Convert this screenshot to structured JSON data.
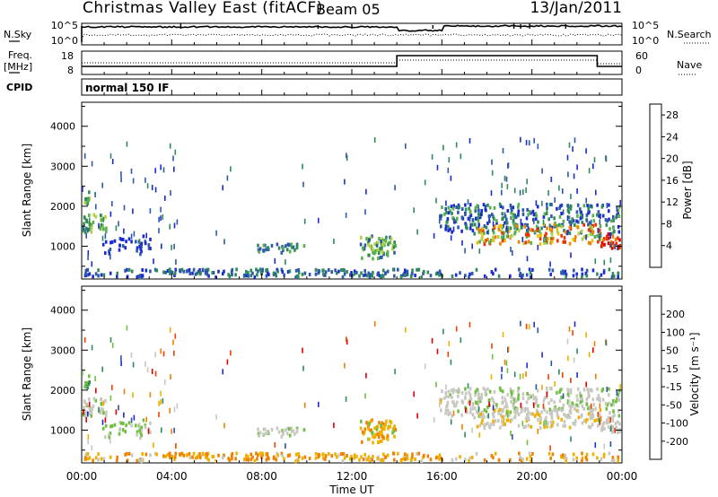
{
  "header": {
    "station": "Christmas Valley East (fitACF)",
    "beam": "Beam 05",
    "date": "13/Jan/2011"
  },
  "strips": {
    "nsky_label": "N.Sky",
    "nsearch_label": "N.Search",
    "freq_label_top": "Freq.",
    "freq_label_bot": "[MHz]",
    "nave_label": "Nave",
    "cpid_label": "CPID",
    "noise_ticks_left": [
      "10^5",
      "10^0"
    ],
    "noise_ticks_right": [
      "10^5",
      "10^0"
    ],
    "freq_ticks": [
      "18",
      "8"
    ],
    "nave_ticks": [
      "60",
      "0"
    ],
    "cpid_text": "normal 150 IF"
  },
  "colors": {
    "power": [
      "#1a2bd0",
      "#2e58a8",
      "#2e8a5a",
      "#58b050",
      "#b0d040",
      "#f0c000",
      "#f08000",
      "#f03000",
      "#e00000"
    ],
    "velocity": [
      "#1a2bd0",
      "#2a50b0",
      "#2e8a5a",
      "#70c040",
      "#c8c8c0",
      "#f0b000",
      "#f08000",
      "#f04000",
      "#e00000"
    ]
  },
  "chart_data": [
    {
      "type": "heatmap",
      "name": "power",
      "ylabel": "Slant Range [km]",
      "yticks": [
        "1000",
        "2000",
        "3000",
        "4000"
      ],
      "ylim": [
        180,
        4600
      ],
      "xlim": [
        0,
        24
      ],
      "colorbar_label": "Power [dB]",
      "colorbar_ticks": [
        "4",
        "8",
        "12",
        "16",
        "20",
        "24",
        "28"
      ],
      "colorbar_range": [
        0,
        30
      ]
    },
    {
      "type": "heatmap",
      "name": "velocity",
      "ylabel": "Slant Range [km]",
      "yticks": [
        "1000",
        "2000",
        "3000",
        "4000"
      ],
      "ylim": [
        180,
        4600
      ],
      "xlim": [
        0,
        24
      ],
      "colorbar_label": "Velocity [m s⁻¹]",
      "colorbar_ticks": [
        "200",
        "100",
        "50",
        "15",
        "-15",
        "-50",
        "-100",
        "-200"
      ]
    }
  ],
  "axes": {
    "xticks": [
      "00:00",
      "04:00",
      "08:00",
      "12:00",
      "16:00",
      "20:00",
      "00:00"
    ],
    "xlabel": "Time UT"
  }
}
